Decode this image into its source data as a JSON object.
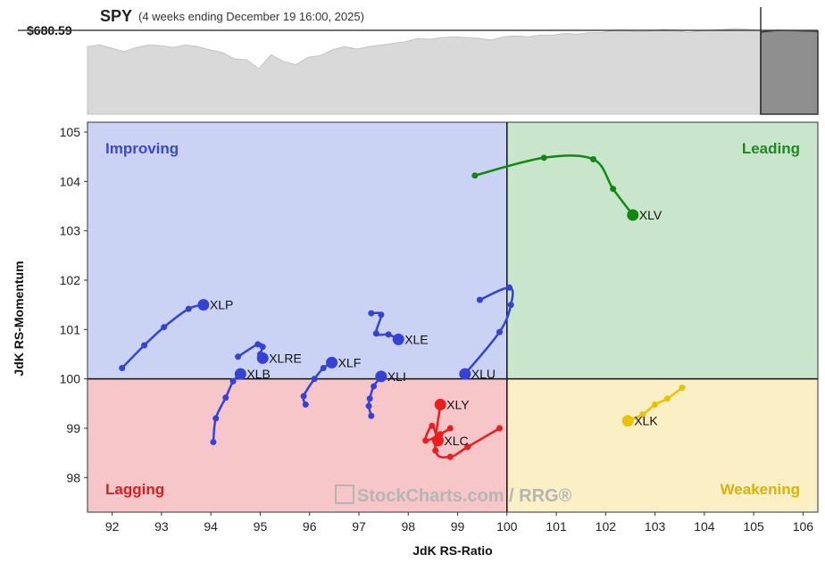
{
  "header": {
    "symbol": "SPY",
    "subtitle": "(4 weeks ending December 19 16:00, 2025)",
    "price_label": "$680.59"
  },
  "watermark": "StockCharts.com / RRG®",
  "quadrants": {
    "improving": {
      "label": "Improving",
      "fill": "#cbd3f5",
      "text": "#3a4ad0"
    },
    "leading": {
      "label": "Leading",
      "fill": "#c9e6cc",
      "text": "#1d8a1d"
    },
    "lagging": {
      "label": "Lagging",
      "fill": "#f7c6c9",
      "text": "#d42020"
    },
    "weakening": {
      "label": "Weakening",
      "fill": "#fbefc6",
      "text": "#d8b400"
    }
  },
  "chart_data": {
    "type": "scatter",
    "xlabel": "JdK RS-Ratio",
    "ylabel": "JdK RS-Momentum",
    "xlim": [
      91.5,
      106.3
    ],
    "ylim": [
      97.3,
      105.2
    ],
    "xticks": [
      92,
      93,
      94,
      95,
      96,
      97,
      98,
      99,
      100,
      101,
      102,
      103,
      104,
      105,
      106
    ],
    "yticks": [
      98,
      99,
      100,
      101,
      102,
      103,
      104,
      105
    ],
    "center": [
      100,
      100
    ],
    "series": [
      {
        "name": "XLV",
        "color": "#0f8a0f",
        "points": [
          [
            99.35,
            104.12
          ],
          [
            100.75,
            104.48
          ],
          [
            101.75,
            104.45
          ],
          [
            102.15,
            103.85
          ],
          [
            102.55,
            103.32
          ]
        ]
      },
      {
        "name": "XLP",
        "color": "#3343d8",
        "points": [
          [
            92.2,
            100.22
          ],
          [
            92.65,
            100.68
          ],
          [
            93.05,
            101.05
          ],
          [
            93.55,
            101.42
          ],
          [
            93.85,
            101.5
          ]
        ]
      },
      {
        "name": "XLRE",
        "color": "#3343d8",
        "points": [
          [
            94.55,
            100.45
          ],
          [
            94.95,
            100.7
          ],
          [
            95.05,
            100.65
          ],
          [
            95.0,
            100.5
          ],
          [
            95.05,
            100.42
          ]
        ]
      },
      {
        "name": "XLB",
        "color": "#3343d8",
        "points": [
          [
            94.05,
            98.72
          ],
          [
            94.1,
            99.2
          ],
          [
            94.3,
            99.62
          ],
          [
            94.45,
            99.95
          ],
          [
            94.6,
            100.1
          ]
        ]
      },
      {
        "name": "XLF",
        "color": "#3343d8",
        "points": [
          [
            95.92,
            99.48
          ],
          [
            95.88,
            99.65
          ],
          [
            96.1,
            100.0
          ],
          [
            96.28,
            100.22
          ],
          [
            96.45,
            100.33
          ]
        ]
      },
      {
        "name": "XLE",
        "color": "#3343d8",
        "points": [
          [
            97.25,
            101.33
          ],
          [
            97.45,
            101.3
          ],
          [
            97.35,
            100.92
          ],
          [
            97.6,
            100.9
          ],
          [
            97.8,
            100.8
          ]
        ]
      },
      {
        "name": "XLI",
        "color": "#3343d8",
        "points": [
          [
            97.25,
            99.25
          ],
          [
            97.2,
            99.45
          ],
          [
            97.22,
            99.6
          ],
          [
            97.3,
            99.85
          ],
          [
            97.45,
            100.05
          ]
        ]
      },
      {
        "name": "XLU",
        "color": "#3343d8",
        "points": [
          [
            99.45,
            101.6
          ],
          [
            100.05,
            101.85
          ],
          [
            100.08,
            101.5
          ],
          [
            99.85,
            100.95
          ],
          [
            99.15,
            100.1
          ]
        ]
      },
      {
        "name": "XLY",
        "color": "#ee1c1c",
        "points": [
          [
            99.85,
            99.0
          ],
          [
            99.2,
            98.62
          ],
          [
            98.85,
            98.42
          ],
          [
            98.55,
            98.55
          ],
          [
            98.65,
            99.48
          ]
        ]
      },
      {
        "name": "XLC",
        "color": "#ee1c1c",
        "points": [
          [
            98.85,
            99.0
          ],
          [
            98.65,
            98.88
          ],
          [
            98.35,
            98.75
          ],
          [
            98.48,
            99.05
          ],
          [
            98.6,
            98.75
          ]
        ]
      },
      {
        "name": "XLK",
        "color": "#eac200",
        "points": [
          [
            103.55,
            99.82
          ],
          [
            103.25,
            99.6
          ],
          [
            103.0,
            99.48
          ],
          [
            102.75,
            99.28
          ],
          [
            102.45,
            99.15
          ]
        ]
      }
    ],
    "benchmark_line": {
      "name": "SPY",
      "values": [
        0.78,
        0.8,
        0.76,
        0.72,
        0.77,
        0.8,
        0.79,
        0.77,
        0.8,
        0.78,
        0.74,
        0.71,
        0.63,
        0.62,
        0.51,
        0.68,
        0.6,
        0.56,
        0.65,
        0.67,
        0.74,
        0.78,
        0.75,
        0.78,
        0.8,
        0.82,
        0.84,
        0.88,
        0.87,
        0.89,
        0.9,
        0.89,
        0.88,
        0.86,
        0.9,
        0.91,
        0.9,
        0.92,
        0.92,
        0.94,
        0.93,
        0.95,
        0.95,
        0.98,
        0.98,
        0.96,
        0.97,
        0.99,
        0.98,
        0.95,
        0.97,
        0.98,
        0.99,
        1.0,
        0.99,
        0.98
      ]
    }
  }
}
